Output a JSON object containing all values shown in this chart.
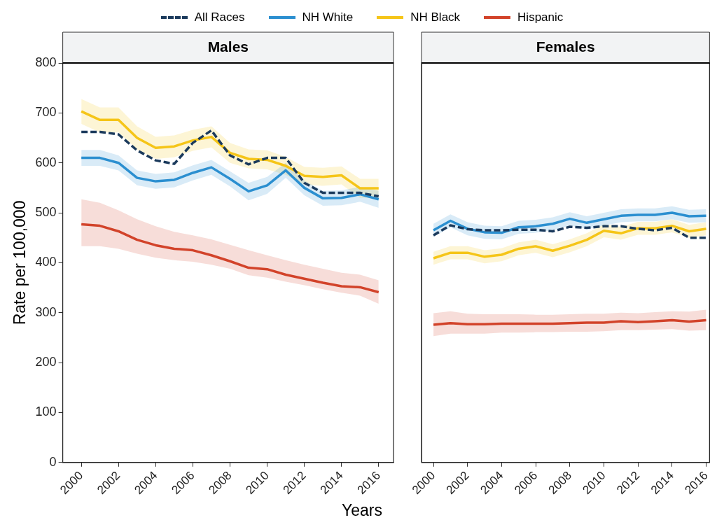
{
  "chart_data": [
    {
      "type": "line",
      "title": "Males",
      "xlabel": "Years",
      "ylabel": "Rate per 100,000",
      "legend": "top",
      "x": [
        2000,
        2001,
        2002,
        2003,
        2004,
        2005,
        2006,
        2007,
        2008,
        2009,
        2010,
        2011,
        2012,
        2013,
        2014,
        2015,
        2016
      ],
      "xlim": [
        1999,
        2016.8
      ],
      "xticks": [
        2000,
        2002,
        2004,
        2006,
        2008,
        2010,
        2012,
        2014,
        2016
      ],
      "ylim": [
        0,
        800
      ],
      "yticks": [
        0,
        100,
        200,
        300,
        400,
        500,
        600,
        700,
        800
      ],
      "grid": false,
      "marker": "none",
      "tick_labels": "xy",
      "series": [
        {
          "name": "All Races",
          "color": "#1b3a5c",
          "line_style": "dashed",
          "values": [
            662,
            662,
            657,
            625,
            605,
            598,
            640,
            665,
            615,
            597,
            610,
            610,
            560,
            540,
            540,
            540,
            533
          ]
        },
        {
          "name": "NH White",
          "color": "#2b8fd0",
          "values": [
            610,
            610,
            600,
            570,
            563,
            566,
            580,
            591,
            568,
            543,
            555,
            585,
            550,
            529,
            530,
            537,
            527
          ],
          "lower": [
            594,
            594,
            585,
            555,
            548,
            551,
            565,
            576,
            553,
            525,
            538,
            570,
            535,
            514,
            515,
            522,
            510
          ],
          "upper": [
            626,
            626,
            615,
            585,
            578,
            581,
            595,
            606,
            583,
            560,
            572,
            600,
            565,
            544,
            545,
            552,
            544
          ]
        },
        {
          "name": "NH Black",
          "color": "#f5c518",
          "values": [
            703,
            686,
            686,
            650,
            630,
            633,
            645,
            652,
            620,
            608,
            606,
            594,
            574,
            572,
            575,
            549,
            549
          ],
          "lower": [
            678,
            661,
            661,
            627,
            608,
            611,
            624,
            631,
            600,
            589,
            587,
            576,
            556,
            554,
            557,
            530,
            530
          ],
          "upper": [
            728,
            711,
            711,
            673,
            652,
            655,
            666,
            673,
            640,
            627,
            625,
            612,
            592,
            590,
            593,
            568,
            568
          ]
        },
        {
          "name": "Hispanic",
          "color": "#d2432a",
          "values": [
            477,
            474,
            463,
            446,
            435,
            428,
            425,
            415,
            403,
            390,
            387,
            376,
            368,
            360,
            353,
            351,
            341
          ],
          "lower": [
            433,
            433,
            428,
            418,
            410,
            405,
            402,
            396,
            388,
            375,
            370,
            362,
            355,
            347,
            340,
            334,
            318
          ],
          "upper": [
            527,
            520,
            505,
            487,
            473,
            462,
            455,
            447,
            436,
            425,
            415,
            405,
            396,
            388,
            380,
            376,
            365
          ]
        }
      ]
    },
    {
      "type": "line",
      "title": "Females",
      "x": [
        2000,
        2001,
        2002,
        2003,
        2004,
        2005,
        2006,
        2007,
        2008,
        2009,
        2010,
        2011,
        2012,
        2013,
        2014,
        2015,
        2016
      ],
      "xlim": [
        1999.3,
        2016.2
      ],
      "xticks": [
        2000,
        2002,
        2004,
        2006,
        2008,
        2010,
        2012,
        2014,
        2016
      ],
      "ylim": [
        0,
        800
      ],
      "yticks": [
        0,
        100,
        200,
        300,
        400,
        500,
        600,
        700,
        800
      ],
      "grid": false,
      "marker": "none",
      "tick_labels": "x",
      "series": [
        {
          "color": "#1b3a5c",
          "line_style": "dashed",
          "values": [
            455,
            475,
            467,
            465,
            465,
            466,
            466,
            463,
            472,
            470,
            473,
            473,
            468,
            465,
            470,
            450,
            450
          ]
        },
        {
          "color": "#2b8fd0",
          "values": [
            465,
            484,
            468,
            461,
            460,
            471,
            473,
            478,
            488,
            480,
            487,
            494,
            496,
            496,
            500,
            493,
            494
          ],
          "lower": [
            452,
            471,
            455,
            448,
            447,
            458,
            460,
            465,
            475,
            467,
            474,
            481,
            483,
            483,
            487,
            480,
            481
          ],
          "upper": [
            478,
            497,
            481,
            474,
            473,
            484,
            486,
            491,
            501,
            493,
            500,
            507,
            509,
            509,
            513,
            506,
            507
          ]
        },
        {
          "color": "#f5c518",
          "values": [
            409,
            420,
            420,
            412,
            416,
            428,
            433,
            424,
            434,
            446,
            464,
            459,
            469,
            469,
            474,
            463,
            468
          ],
          "lower": [
            396,
            407,
            407,
            399,
            403,
            415,
            420,
            411,
            421,
            433,
            451,
            446,
            456,
            456,
            461,
            450,
            455
          ],
          "upper": [
            422,
            433,
            433,
            425,
            429,
            441,
            446,
            437,
            447,
            459,
            477,
            472,
            482,
            482,
            487,
            476,
            481
          ]
        },
        {
          "color": "#d2432a",
          "values": [
            276,
            279,
            277,
            277,
            278,
            278,
            278,
            278,
            279,
            280,
            280,
            283,
            281,
            283,
            285,
            282,
            285
          ],
          "lower": [
            253,
            258,
            258,
            258,
            260,
            260,
            261,
            261,
            262,
            262,
            263,
            265,
            265,
            266,
            267,
            264,
            265
          ],
          "upper": [
            299,
            303,
            298,
            297,
            297,
            297,
            296,
            296,
            297,
            298,
            298,
            300,
            299,
            301,
            303,
            302,
            306
          ]
        }
      ]
    }
  ]
}
